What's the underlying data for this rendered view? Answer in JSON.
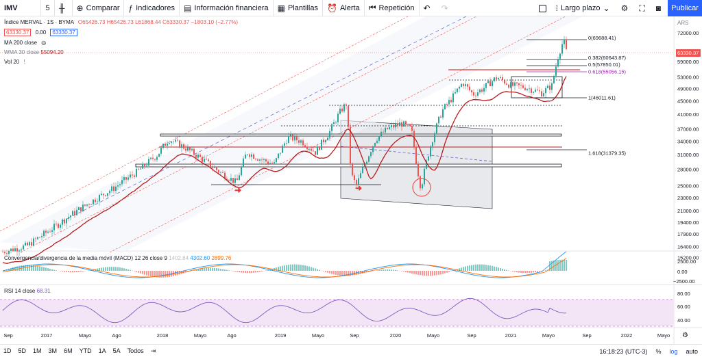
{
  "toolbar": {
    "symbol": "IMV",
    "interval": "5",
    "compare": "Comparar",
    "indicators": "Indicadores",
    "financials": "Información financiera",
    "templates": "Plantillas",
    "alert": "Alerta",
    "replay": "Repetición",
    "timeframe": "Largo plazo",
    "publish": "Publicar"
  },
  "legend": {
    "title": "Índice MERVAL · 1S · BYMA",
    "ohlc": "O65426.73 H65426.73 L61868.44 C63330.37 −1803.10 (−2.77%)",
    "price_box1": "63330.37",
    "spread": "0.00",
    "price_box2": "63330.37",
    "ma200": "MA 200 close",
    "wma30_label": "WMA 30 close",
    "wma30_value": "55094.20",
    "vol": "Vol 20"
  },
  "price_axis": {
    "currency": "ARS",
    "last_price": "63330.37",
    "ticks": [
      {
        "label": "72000.00",
        "value": 72000
      },
      {
        "label": "59000.00",
        "value": 59000
      },
      {
        "label": "53000.00",
        "value": 53000
      },
      {
        "label": "49000.00",
        "value": 49000
      },
      {
        "label": "45000.00",
        "value": 45000
      },
      {
        "label": "41000.00",
        "value": 41000
      },
      {
        "label": "37000.00",
        "value": 37000
      },
      {
        "label": "34000.00",
        "value": 34000
      },
      {
        "label": "31000.00",
        "value": 31000
      },
      {
        "label": "28000.00",
        "value": 28000
      },
      {
        "label": "25000.00",
        "value": 25000
      },
      {
        "label": "23000.00",
        "value": 23000
      },
      {
        "label": "21000.00",
        "value": 21000
      },
      {
        "label": "19400.00",
        "value": 19400
      },
      {
        "label": "17900.00",
        "value": 17900
      },
      {
        "label": "16400.00",
        "value": 16400
      },
      {
        "label": "15200.00",
        "value": 15200
      }
    ]
  },
  "fib_labels": [
    {
      "label": "0(69688.41)",
      "value": 69688.41
    },
    {
      "label": "0.382(60643.87)",
      "value": 60643.87
    },
    {
      "label": "0.5(57850.01)",
      "value": 57850.01
    },
    {
      "label": "0.618(55056.15)",
      "value": 55056.15
    },
    {
      "label": "1(46011.61)",
      "value": 46011.61
    },
    {
      "label": "1.618(31379.35)",
      "value": 31379.35
    }
  ],
  "macd": {
    "label": "Convergencia/divergencia de la media móvil (MACD)",
    "params": "12 26 close 9",
    "v1": "1402.84",
    "v2": "4302.60",
    "v3": "2899.76",
    "ticks": [
      "2500.00",
      "0.00",
      "−2500.00"
    ]
  },
  "rsi": {
    "label": "RSI 14 close",
    "value": "68.31",
    "ticks": [
      "80.00",
      "60.00",
      "40.00"
    ]
  },
  "time_axis": [
    "Sep",
    "2017",
    "Mayo",
    "Ago",
    "2018",
    "Mayo",
    "Ago",
    "2019",
    "Mayo",
    "Sep",
    "2020",
    "Mayo",
    "Sep",
    "2021",
    "Mayo",
    "Sep",
    "2022",
    "Mayo"
  ],
  "bottom": {
    "ranges": [
      "1D",
      "5D",
      "1M",
      "3M",
      "6M",
      "YTD",
      "1A",
      "5A",
      "Todos"
    ],
    "clock": "16:18:23 (UTC-3)",
    "percent": "%",
    "log": "log",
    "auto": "auto"
  },
  "colors": {
    "accent": "#2962ff",
    "up": "#26a69a",
    "down": "#ef5350",
    "wma": "#b71c1c",
    "rsi_fill": "#f3e5f5"
  }
}
